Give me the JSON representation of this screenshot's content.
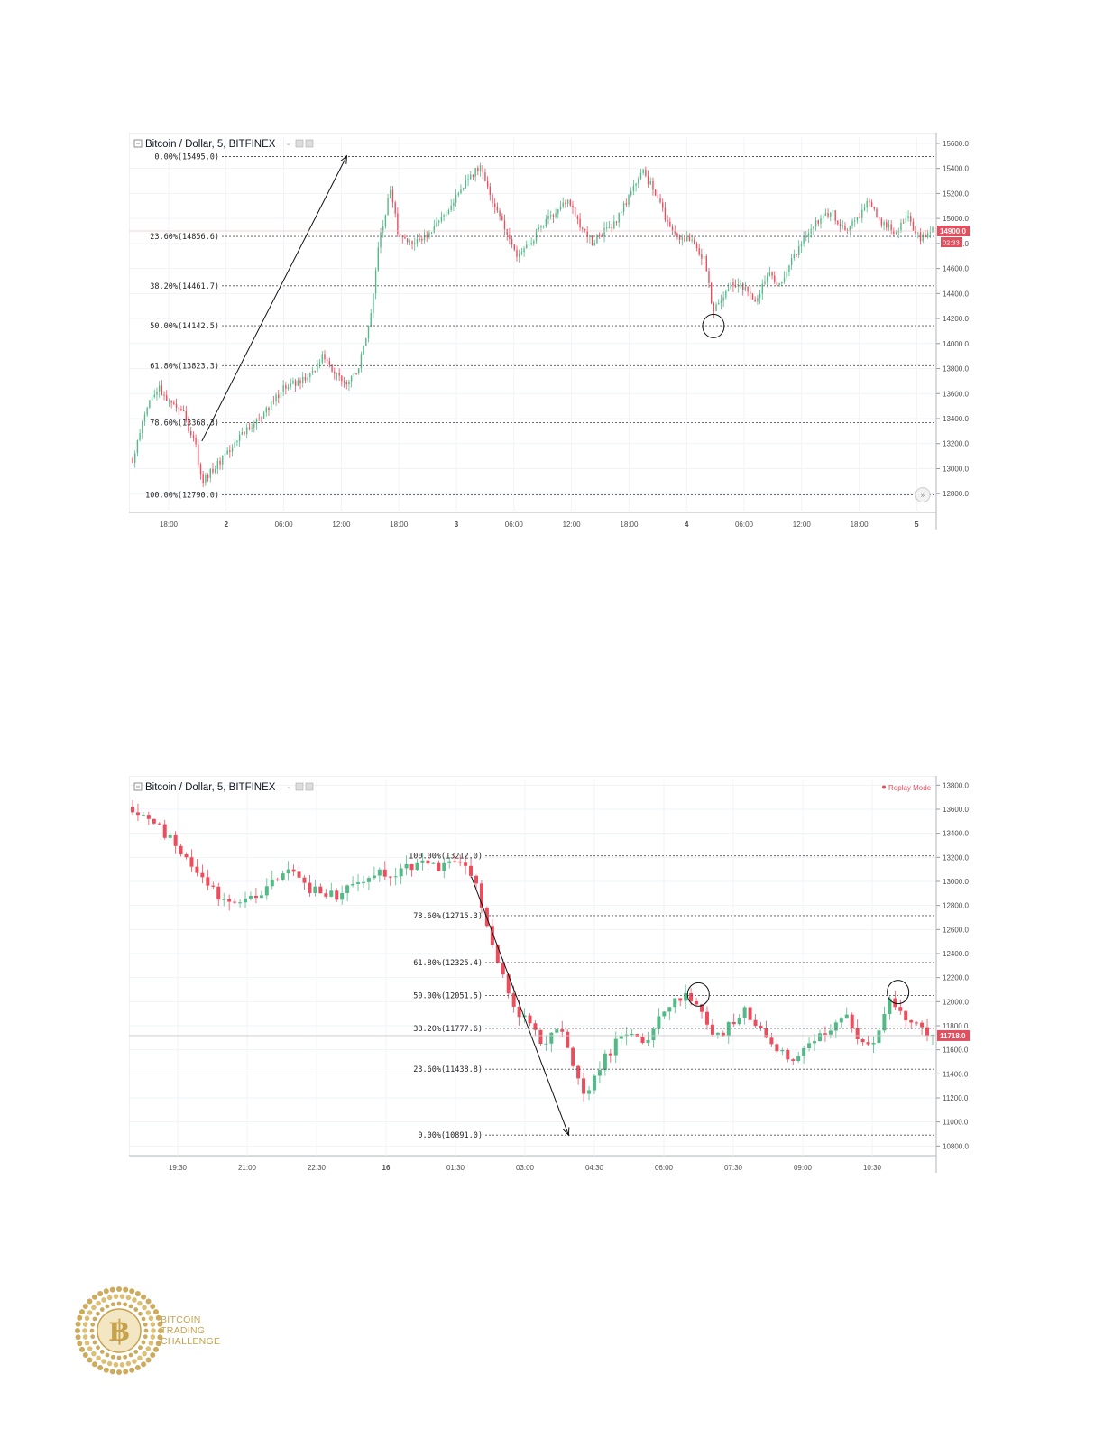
{
  "chart_data": [
    {
      "type": "candlestick",
      "title": "Bitcoin / Dollar, 5, BITFINEX",
      "ylim": [
        12650,
        15650
      ],
      "y_ticks": [
        "15600.0",
        "15400.0",
        "15200.0",
        "15000.0",
        "14800.0",
        "14600.0",
        "14400.0",
        "14200.0",
        "14000.0",
        "13800.0",
        "13600.0",
        "13400.0",
        "13200.0",
        "13000.0",
        "12800.0"
      ],
      "x_ticks": [
        "18:00",
        "2",
        "06:00",
        "12:00",
        "18:00",
        "3",
        "06:00",
        "12:00",
        "18:00",
        "4",
        "06:00",
        "12:00",
        "18:00",
        "5"
      ],
      "fib_levels": [
        {
          "label": "0.00%(15495.0)",
          "value": 15495.0
        },
        {
          "label": "23.60%(14856.6)",
          "value": 14856.6
        },
        {
          "label": "38.20%(14461.7)",
          "value": 14461.7
        },
        {
          "label": "50.00%(14142.5)",
          "value": 14142.5
        },
        {
          "label": "61.80%(13823.3)",
          "value": 13823.3
        },
        {
          "label": "78.60%(13368.3)",
          "value": 13368.3
        },
        {
          "label": "100.00%(12790.0)",
          "value": 12790.0
        }
      ],
      "price_label": "14900.0",
      "price_value": 14900,
      "countdown_label": "02:33",
      "price_path": [
        [
          0,
          13080
        ],
        [
          2,
          13450
        ],
        [
          4,
          13650
        ],
        [
          6,
          13500
        ],
        [
          8,
          13450
        ],
        [
          10,
          13180
        ],
        [
          11,
          12900
        ],
        [
          13,
          13000
        ],
        [
          16,
          13200
        ],
        [
          20,
          13400
        ],
        [
          24,
          13650
        ],
        [
          28,
          13720
        ],
        [
          30,
          13900
        ],
        [
          32,
          13780
        ],
        [
          34,
          13680
        ],
        [
          36,
          13820
        ],
        [
          38,
          14300
        ],
        [
          39,
          14800
        ],
        [
          40,
          15000
        ],
        [
          41,
          15250
        ],
        [
          42,
          14900
        ],
        [
          44,
          14800
        ],
        [
          47,
          14850
        ],
        [
          49,
          15000
        ],
        [
          51,
          15150
        ],
        [
          53,
          15300
        ],
        [
          55,
          15420
        ],
        [
          57,
          15150
        ],
        [
          59,
          14950
        ],
        [
          61,
          14700
        ],
        [
          63,
          14800
        ],
        [
          65,
          14950
        ],
        [
          67,
          15050
        ],
        [
          69,
          15150
        ],
        [
          71,
          14950
        ],
        [
          73,
          14800
        ],
        [
          75,
          14900
        ],
        [
          77,
          15000
        ],
        [
          79,
          15200
        ],
        [
          81,
          15380
        ],
        [
          83,
          15200
        ],
        [
          85,
          14950
        ],
        [
          87,
          14850
        ],
        [
          89,
          14800
        ],
        [
          91,
          14650
        ],
        [
          92,
          14260
        ],
        [
          93,
          14300
        ],
        [
          95,
          14500
        ],
        [
          97,
          14450
        ],
        [
          99,
          14350
        ],
        [
          101,
          14550
        ],
        [
          103,
          14450
        ],
        [
          105,
          14700
        ],
        [
          107,
          14850
        ],
        [
          109,
          15000
        ],
        [
          111,
          15050
        ],
        [
          113,
          14900
        ],
        [
          115,
          15000
        ],
        [
          117,
          15150
        ],
        [
          119,
          14950
        ],
        [
          121,
          14900
        ],
        [
          123,
          15000
        ],
        [
          125,
          14850
        ],
        [
          127,
          14900
        ]
      ],
      "circles": [
        {
          "x": 92.2,
          "y": 14140
        }
      ],
      "arrow": {
        "from": [
          11,
          13220
        ],
        "to": [
          34,
          15500
        ]
      },
      "nav_icon": "double-chevron-right-icon"
    },
    {
      "type": "candlestick",
      "title": "Bitcoin / Dollar, 5, BITFINEX",
      "badge": "Replay Mode",
      "ylim": [
        10720,
        13840
      ],
      "y_ticks": [
        "13800.0",
        "13600.0",
        "13400.0",
        "13200.0",
        "13000.0",
        "12800.0",
        "12600.0",
        "12400.0",
        "12200.0",
        "12000.0",
        "11800.0",
        "11600.0",
        "11400.0",
        "11200.0",
        "11000.0",
        "10800.0"
      ],
      "x_ticks": [
        "19:30",
        "21:00",
        "22:30",
        "16",
        "01:30",
        "03:00",
        "04:30",
        "06:00",
        "07:30",
        "09:00",
        "10:30"
      ],
      "fib_levels": [
        {
          "label": "100.00%(13212.0)",
          "value": 13212.0
        },
        {
          "label": "78.60%(12715.3)",
          "value": 12715.3
        },
        {
          "label": "61.80%(12325.4)",
          "value": 12325.4
        },
        {
          "label": "50.00%(12051.5)",
          "value": 12051.5
        },
        {
          "label": "38.20%(11777.6)",
          "value": 11777.6
        },
        {
          "label": "23.60%(11438.8)",
          "value": 11438.8
        },
        {
          "label": "0.00%(10891.0)",
          "value": 10891.0
        }
      ],
      "price_label": "11718.0",
      "price_value": 11718,
      "price_path": [
        [
          0,
          13620
        ],
        [
          3,
          13480
        ],
        [
          6,
          13300
        ],
        [
          8,
          13150
        ],
        [
          10,
          13000
        ],
        [
          12,
          12850
        ],
        [
          14,
          12800
        ],
        [
          17,
          12900
        ],
        [
          20,
          13000
        ],
        [
          22,
          13080
        ],
        [
          25,
          12920
        ],
        [
          28,
          12880
        ],
        [
          31,
          12950
        ],
        [
          34,
          13050
        ],
        [
          37,
          13080
        ],
        [
          40,
          13150
        ],
        [
          43,
          13120
        ],
        [
          45,
          13170
        ],
        [
          47,
          13060
        ],
        [
          49,
          12700
        ],
        [
          51,
          12250
        ],
        [
          53,
          11950
        ],
        [
          55,
          11850
        ],
        [
          57,
          11600
        ],
        [
          59,
          11800
        ],
        [
          61,
          11500
        ],
        [
          63,
          11200
        ],
        [
          65,
          11500
        ],
        [
          67,
          11650
        ],
        [
          69,
          11800
        ],
        [
          71,
          11650
        ],
        [
          73,
          11880
        ],
        [
          75,
          11980
        ],
        [
          77,
          12030
        ],
        [
          79,
          11900
        ],
        [
          81,
          11700
        ],
        [
          83,
          11800
        ],
        [
          85,
          11920
        ],
        [
          87,
          11750
        ],
        [
          89,
          11650
        ],
        [
          91,
          11520
        ],
        [
          93,
          11600
        ],
        [
          95,
          11700
        ],
        [
          97,
          11800
        ],
        [
          99,
          11900
        ],
        [
          101,
          11650
        ],
        [
          103,
          11700
        ],
        [
          105,
          12000
        ],
        [
          107,
          11900
        ],
        [
          109,
          11800
        ],
        [
          111,
          11740
        ]
      ],
      "circles": [
        {
          "x": 78.5,
          "y": 12060
        },
        {
          "x": 106.2,
          "y": 12080
        }
      ],
      "arrow": {
        "from": [
          47,
          13040
        ],
        "to": [
          60.5,
          10890
        ]
      }
    }
  ],
  "logo": {
    "line1": "BITCOIN",
    "line2": "TRADING",
    "line3": "CHALLENGE",
    "color": "#c6a24d"
  },
  "colors": {
    "up": "#53b987",
    "down": "#eb4d5c",
    "grid": "#f0f3fa",
    "dotted": "#555555",
    "axis_text": "#4f4f4f",
    "price_tag": "#e0505e"
  }
}
